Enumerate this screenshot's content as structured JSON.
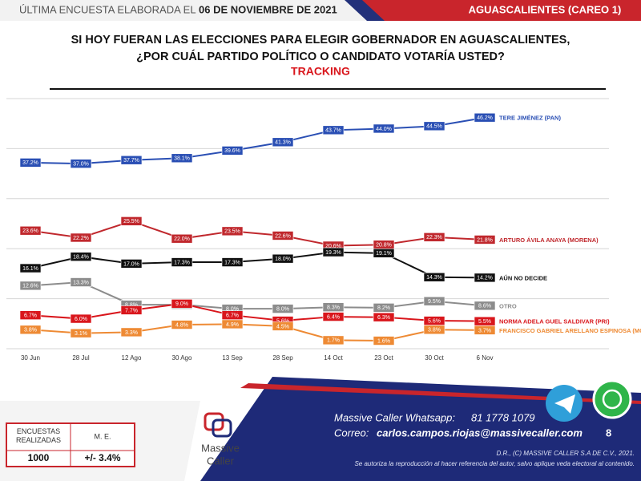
{
  "header": {
    "survey_label": "ÚLTIMA ENCUESTA ELABORADA EL",
    "survey_date": "06 DE NOVIEMBRE DE 2021",
    "region": "AGUASCALIENTES (CAREO 1)"
  },
  "chart_data": {
    "type": "line",
    "title": [
      "SI HOY FUERAN LAS ELECCIONES PARA ELEGIR GOBERNADOR EN AGUASCALIENTES,",
      "¿POR CUÁL PARTIDO POLÍTICO O CANDIDATO VOTARÍA USTED?"
    ],
    "subtitle": "TRACKING",
    "categories": [
      "30 Jun",
      "28 Jul",
      "12 Ago",
      "30 Ago",
      "13 Sep",
      "28 Sep",
      "14 Oct",
      "23 Oct",
      "30 Oct",
      "6 Nov"
    ],
    "ylim": [
      0,
      50
    ],
    "yticks": [
      0,
      10,
      20,
      30,
      40,
      50
    ],
    "grid": true,
    "series": [
      {
        "name": "TERE JIMÉNEZ (PAN)",
        "color": "#2a4fb4",
        "values": [
          37.2,
          37.0,
          37.7,
          38.1,
          39.6,
          41.3,
          43.7,
          44.0,
          44.5,
          46.2
        ],
        "value_labels": [
          "37.2%",
          "37.0%",
          "37.7%",
          "38.1%",
          "39.6%",
          "41.3%",
          "43.7%",
          "44.0%",
          "44.5%",
          "46.2%"
        ]
      },
      {
        "name": "ARTURO ÁVILA ANAYA (MORENA)",
        "color": "#c0282d",
        "values": [
          23.6,
          22.2,
          25.5,
          22.0,
          23.5,
          22.6,
          20.6,
          20.8,
          22.3,
          21.8
        ],
        "value_labels": [
          "23.6%",
          "22.2%",
          "25.5%",
          "22.0%",
          "23.5%",
          "22.6%",
          "20.6%",
          "20.8%",
          "22.3%",
          "21.8%"
        ]
      },
      {
        "name": "AÚN NO DECIDE",
        "color": "#111111",
        "values": [
          16.1,
          18.4,
          17.0,
          17.3,
          17.3,
          18.0,
          19.3,
          19.1,
          14.3,
          14.2
        ],
        "value_labels": [
          "16.1%",
          "18.4%",
          "17.0%",
          "17.3%",
          "17.3%",
          "18.0%",
          "19.3%",
          "19.1%",
          "14.3%",
          "14.2%"
        ]
      },
      {
        "name": "OTRO",
        "color": "#8c8c8c",
        "values": [
          12.6,
          13.3,
          8.8,
          8.8,
          8.0,
          8.0,
          8.3,
          8.2,
          9.5,
          8.6
        ],
        "value_labels": [
          "12.6%",
          "13.3%",
          "8.8%",
          "8.8%",
          "8.0%",
          "8.0%",
          "8.3%",
          "8.2%",
          "9.5%",
          "8.6%"
        ]
      },
      {
        "name": "NORMA ADELA GUEL SALDIVAR (PRI)",
        "color": "#d9161c",
        "values": [
          6.7,
          6.0,
          7.7,
          9.0,
          6.7,
          5.6,
          6.4,
          6.3,
          5.6,
          5.5
        ],
        "value_labels": [
          "6.7%",
          "6.0%",
          "7.7%",
          "9.0%",
          "6.7%",
          "5.6%",
          "6.4%",
          "6.3%",
          "5.6%",
          "5.5%"
        ]
      },
      {
        "name": "FRANCISCO GABRIEL ARELLANO ESPINOSA (MC)",
        "color": "#ee8a34",
        "values": [
          3.8,
          3.1,
          3.3,
          4.8,
          4.9,
          4.5,
          1.7,
          1.6,
          3.8,
          3.7
        ],
        "value_labels": [
          "3.8%",
          "3.1%",
          "3.3%",
          "4.8%",
          "4.9%",
          "4.5%",
          "1.7%",
          "1.6%",
          "3.8%",
          "3.7%"
        ]
      }
    ]
  },
  "footer": {
    "surveys_header": "ENCUESTAS REALIZADAS",
    "margin_header": "M. E.",
    "surveys_value": "1000",
    "margin_value": "+/- 3.4%",
    "logo_line1": "Massive",
    "logo_line2": "Caller",
    "whatsapp_label": "Massive Caller Whatsapp:",
    "whatsapp_number": "81 1778 1079",
    "email_label": "Correo:",
    "email": "carlos.campos.riojas@massivecaller.com",
    "page_number": "8",
    "copyright": "D.R., (C) MASSIVE CALLER S.A DE C.V., 2021.",
    "disclaimer": "Se autoriza la reproducción al hacer referencia del autor, salvo aplique veda electoral al contenido."
  }
}
